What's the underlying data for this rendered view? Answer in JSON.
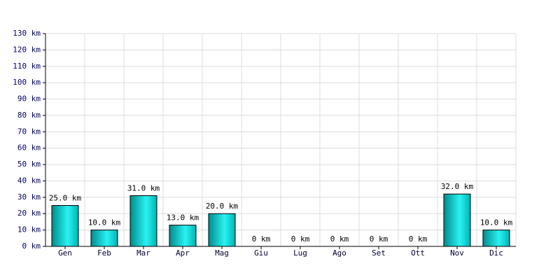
{
  "chart_data": {
    "type": "bar",
    "categories": [
      "Gen",
      "Feb",
      "Mar",
      "Apr",
      "Mag",
      "Giu",
      "Lug",
      "Ago",
      "Set",
      "Ott",
      "Nov",
      "Dic"
    ],
    "values": [
      25,
      10,
      31,
      13,
      20,
      0,
      0,
      0,
      0,
      0,
      32,
      10
    ],
    "value_labels": [
      "25.0 km",
      "10.0 km",
      "31.0 km",
      "13.0 km",
      "20.0 km",
      "0 km",
      "0 km",
      "0 km",
      "0 km",
      "0 km",
      "32.0 km",
      "10.0 km"
    ],
    "color": "#00c8c8",
    "ylim": [
      0,
      130
    ],
    "yticks": [
      {
        "value": 0,
        "label": "0 km"
      },
      {
        "value": 10,
        "label": "10 km"
      },
      {
        "value": 20,
        "label": "20 km"
      },
      {
        "value": 30,
        "label": "30 km"
      },
      {
        "value": 40,
        "label": "40 km"
      },
      {
        "value": 50,
        "label": "50 km"
      },
      {
        "value": 60,
        "label": "60 km"
      },
      {
        "value": 70,
        "label": "70 km"
      },
      {
        "value": 80,
        "label": "80 km"
      },
      {
        "value": 90,
        "label": "90 km"
      },
      {
        "value": 100,
        "label": "100 km"
      },
      {
        "value": 110,
        "label": "110 km"
      },
      {
        "value": 120,
        "label": "120 km"
      },
      {
        "value": 130,
        "label": "130 km"
      }
    ],
    "grid": true
  }
}
